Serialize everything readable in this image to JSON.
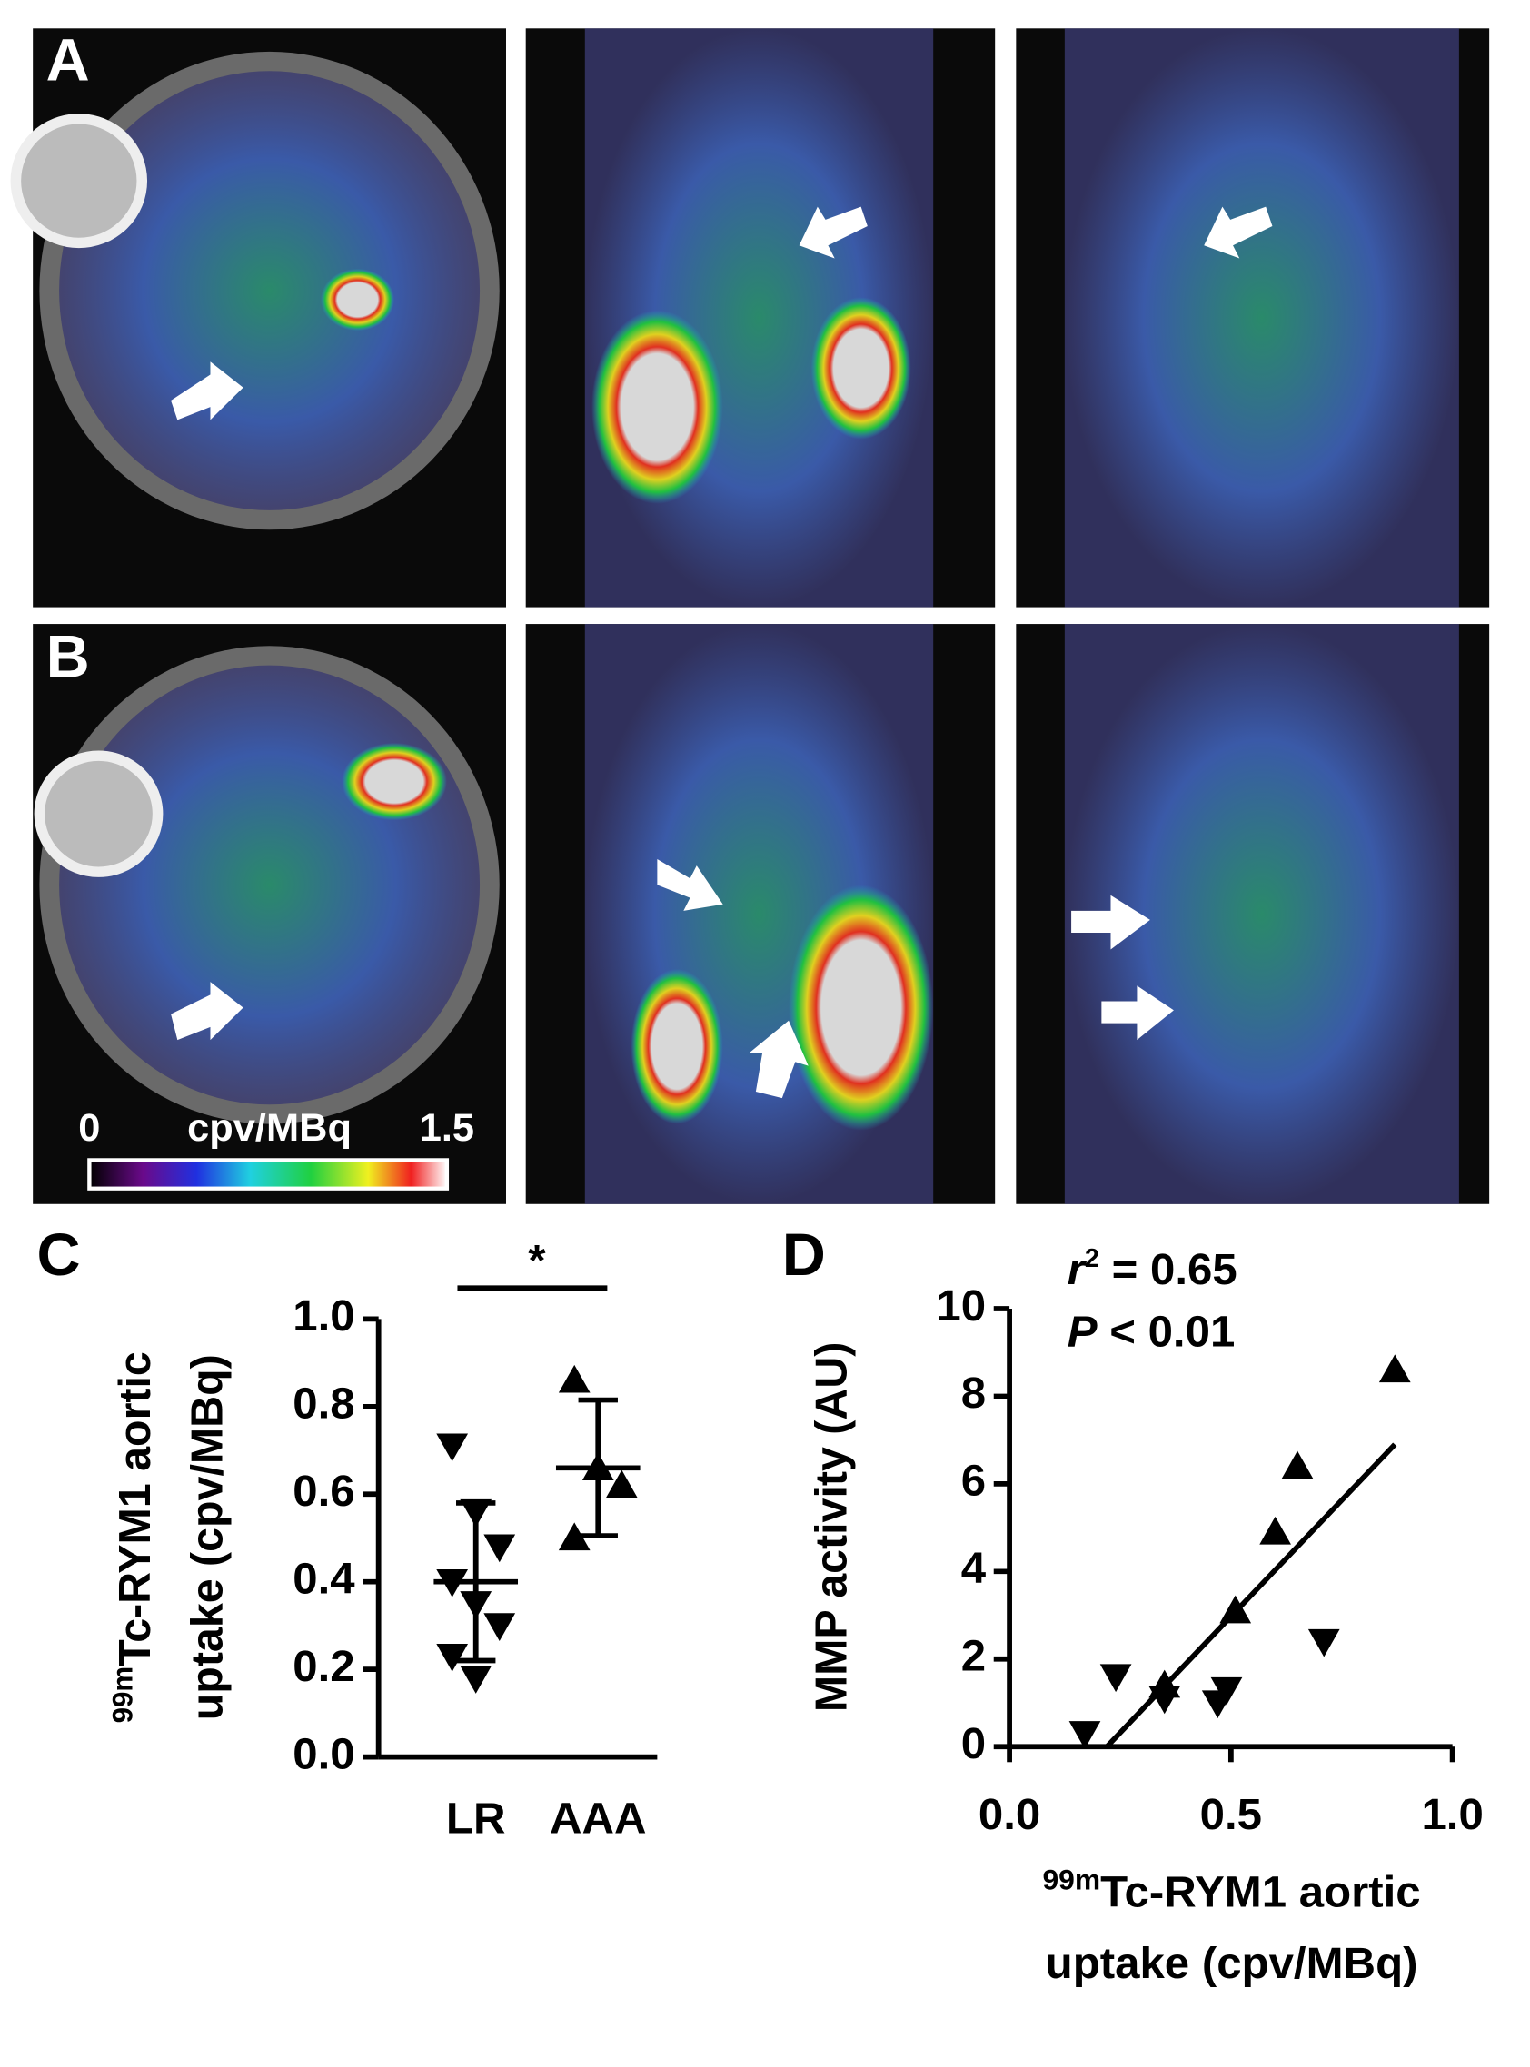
{
  "panel_labels": [
    "A",
    "B"
  ],
  "colorbar": {
    "label": "cpv/MBq",
    "lim": [
      0,
      1.5
    ],
    "ticks": [
      0,
      1.5
    ]
  },
  "chart_data": [
    {
      "type": "dot",
      "panel": "C",
      "categories": [
        "LR",
        "AAA"
      ],
      "values": [
        [
          0.71,
          0.56,
          0.48,
          0.4,
          0.35,
          0.3,
          0.23,
          0.18
        ],
        [
          0.86,
          0.66,
          0.62,
          0.5
        ]
      ],
      "markers": [
        "triangle-down",
        "triangle-up"
      ],
      "color": "#000000",
      "mean": [
        0.4,
        0.66
      ],
      "sd": [
        0.18,
        0.155
      ],
      "annotation": "*",
      "ylabel_sup": "99m",
      "ylabel": [
        "Tc-RYM1 aortic",
        "uptake (cpv/MBq)"
      ],
      "ylim": [
        0,
        1
      ],
      "yticks": [
        {
          "value": 0,
          "label": "0.0"
        },
        0.2,
        0.4,
        0.6,
        0.8,
        {
          "value": 1,
          "label": "1.0"
        }
      ]
    },
    {
      "type": "scatter",
      "panel": "D",
      "color": "#000000",
      "series": [
        {
          "marker": "triangle-down",
          "x": [
            0.17,
            0.24,
            0.35,
            0.47,
            0.49,
            0.71
          ],
          "values": [
            0.3,
            1.6,
            1.1,
            1.0,
            1.3,
            2.4
          ]
        },
        {
          "marker": "triangle-up",
          "x": [
            0.35,
            0.51,
            0.6,
            0.65,
            0.87
          ],
          "values": [
            1.4,
            3.1,
            4.9,
            6.4,
            8.6
          ]
        }
      ],
      "fit": {
        "x": [
          0.22,
          0.87
        ],
        "y": [
          0,
          6.9
        ]
      },
      "annotations": [
        {
          "symbol": "r",
          "sup": "2",
          "text": " = 0.65"
        },
        {
          "symbol": "P",
          "text": " < 0.01"
        }
      ],
      "xlabel_sup": "99m",
      "xlabel": [
        "Tc-RYM1 aortic",
        "uptake (cpv/MBq)"
      ],
      "ylabel": "MMP activity (AU)",
      "xlim": [
        0,
        1
      ],
      "xticks": [
        {
          "value": 0,
          "label": "0.0"
        },
        0.5,
        {
          "value": 1,
          "label": "1.0"
        }
      ],
      "ylim": [
        0,
        10
      ],
      "yticks": [
        0,
        2,
        4,
        6,
        8,
        10
      ]
    }
  ]
}
